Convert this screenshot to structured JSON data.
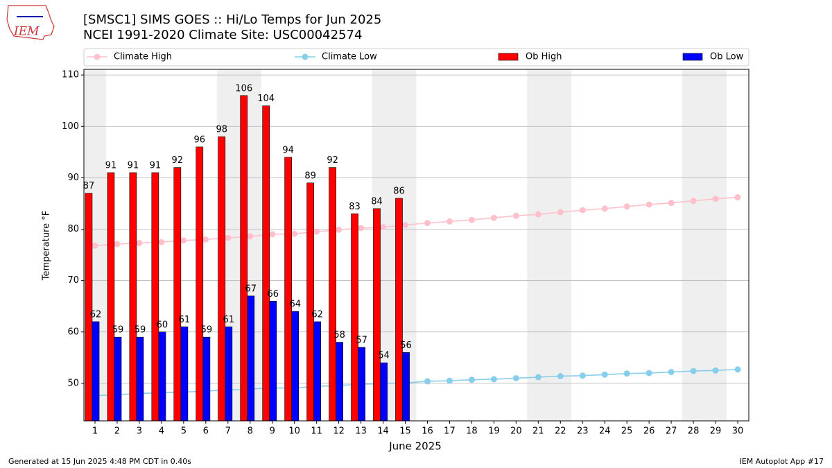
{
  "chart_data": {
    "type": "bar",
    "title": "[SMSC1] SIMS GOES :: Hi/Lo Temps for Jun 2025",
    "subtitle": "NCEI 1991-2020 Climate Site: USC00042574",
    "x_label": "June 2025",
    "y_label": "Temperature °F",
    "footer_left": "Generated at 15 Jun 2025 4:48 PM CDT in 0.40s",
    "footer_right": "IEM Autoplot App #17",
    "logo_text": "IEM",
    "x": [
      1,
      2,
      3,
      4,
      5,
      6,
      7,
      8,
      9,
      10,
      11,
      12,
      13,
      14,
      15,
      16,
      17,
      18,
      19,
      20,
      21,
      22,
      23,
      24,
      25,
      26,
      27,
      28,
      29,
      30
    ],
    "xlim": [
      0.5,
      30.5
    ],
    "xticks": [
      1,
      2,
      3,
      4,
      5,
      6,
      7,
      8,
      9,
      10,
      11,
      12,
      13,
      14,
      15,
      16,
      17,
      18,
      19,
      20,
      21,
      22,
      23,
      24,
      25,
      26,
      27,
      28,
      29,
      30
    ],
    "ylim": [
      42.7,
      111.1
    ],
    "yticks": [
      50,
      60,
      70,
      80,
      90,
      100,
      110
    ],
    "grid": true,
    "shaded_ranges": [
      [
        0.5,
        1.5
      ],
      [
        6.5,
        8.5
      ],
      [
        13.5,
        15.5
      ],
      [
        20.5,
        22.5
      ],
      [
        27.5,
        29.5
      ]
    ],
    "shade_color": "#efefef",
    "series": [
      {
        "name": "Climate High",
        "type": "line",
        "color": "#ffc0cb",
        "values": [
          76.8,
          77.1,
          77.3,
          77.5,
          77.8,
          78.0,
          78.3,
          78.6,
          79.0,
          79.1,
          79.5,
          79.9,
          80.2,
          80.4,
          80.8,
          81.2,
          81.5,
          81.8,
          82.2,
          82.6,
          82.9,
          83.3,
          83.7,
          84.0,
          84.4,
          84.8,
          85.1,
          85.5,
          85.9,
          86.2
        ]
      },
      {
        "name": "Climate Low",
        "type": "line",
        "color": "#87ceeb",
        "values": [
          47.6,
          47.8,
          48.0,
          48.2,
          48.3,
          48.5,
          48.7,
          48.9,
          49.1,
          49.1,
          49.4,
          49.6,
          49.8,
          50.0,
          50.1,
          50.4,
          50.5,
          50.7,
          50.8,
          51.0,
          51.2,
          51.4,
          51.5,
          51.7,
          51.9,
          52.0,
          52.2,
          52.4,
          52.5,
          52.7
        ]
      },
      {
        "name": "Ob High",
        "type": "bar",
        "color": "#ff0000",
        "values": [
          87,
          91,
          91,
          91,
          92,
          96,
          98,
          106,
          104,
          94,
          89,
          92,
          83,
          84,
          86,
          null,
          null,
          null,
          null,
          null,
          null,
          null,
          null,
          null,
          null,
          null,
          null,
          null,
          null,
          null
        ]
      },
      {
        "name": "Ob Low",
        "type": "bar",
        "color": "#0000ff",
        "values": [
          62,
          59,
          59,
          60,
          61,
          59,
          61,
          67,
          66,
          64,
          62,
          58,
          57,
          54,
          56,
          null,
          null,
          null,
          null,
          null,
          null,
          null,
          null,
          null,
          null,
          null,
          null,
          null,
          null,
          null
        ]
      }
    ]
  }
}
